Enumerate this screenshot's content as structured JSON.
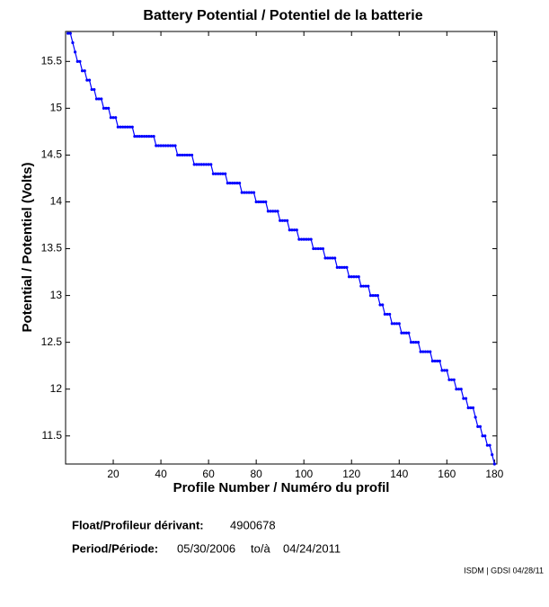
{
  "chart_data": {
    "type": "line",
    "title": "Battery Potential / Potentiel de la batterie",
    "xlabel": "Profile Number / Numéro du profil",
    "ylabel": "Potential / Potentiel (Volts)",
    "xlim": [
      0,
      181
    ],
    "xticks": [
      20,
      40,
      60,
      80,
      100,
      120,
      140,
      160,
      180
    ],
    "ylim": [
      11.2,
      15.82
    ],
    "yticks": [
      11.5,
      12,
      12.5,
      13,
      13.5,
      14,
      14.5,
      15,
      15.5
    ],
    "x": [
      1,
      2,
      3,
      4,
      5,
      6,
      7,
      8,
      9,
      10,
      11,
      12,
      13,
      14,
      15,
      16,
      17,
      18,
      19,
      20,
      21,
      22,
      23,
      24,
      25,
      26,
      27,
      28,
      29,
      30,
      31,
      32,
      33,
      34,
      35,
      36,
      37,
      38,
      39,
      40,
      41,
      42,
      43,
      44,
      45,
      46,
      47,
      48,
      49,
      50,
      51,
      52,
      53,
      54,
      55,
      56,
      57,
      58,
      59,
      60,
      61,
      62,
      63,
      64,
      65,
      66,
      67,
      68,
      69,
      70,
      71,
      72,
      73,
      74,
      75,
      76,
      77,
      78,
      79,
      80,
      81,
      82,
      83,
      84,
      85,
      86,
      87,
      88,
      89,
      90,
      91,
      92,
      93,
      94,
      95,
      96,
      97,
      98,
      99,
      100,
      101,
      102,
      103,
      104,
      105,
      106,
      107,
      108,
      109,
      110,
      111,
      112,
      113,
      114,
      115,
      116,
      117,
      118,
      119,
      120,
      121,
      122,
      123,
      124,
      125,
      126,
      127,
      128,
      129,
      130,
      131,
      132,
      133,
      134,
      135,
      136,
      137,
      138,
      139,
      140,
      141,
      142,
      143,
      144,
      145,
      146,
      147,
      148,
      149,
      150,
      151,
      152,
      153,
      154,
      155,
      156,
      157,
      158,
      159,
      160,
      161,
      162,
      163,
      164,
      165,
      166,
      167,
      168,
      169,
      170,
      171,
      172,
      173,
      174,
      175,
      176,
      177,
      178,
      179,
      180
    ],
    "series": [
      {
        "color": "#0000ff",
        "values": [
          15.8,
          15.8,
          15.7,
          15.6,
          15.5,
          15.5,
          15.4,
          15.4,
          15.3,
          15.3,
          15.2,
          15.2,
          15.1,
          15.1,
          15.1,
          15.0,
          15.0,
          15.0,
          14.9,
          14.9,
          14.9,
          14.8,
          14.8,
          14.8,
          14.8,
          14.8,
          14.8,
          14.8,
          14.7,
          14.7,
          14.7,
          14.7,
          14.7,
          14.7,
          14.7,
          14.7,
          14.7,
          14.6,
          14.6,
          14.6,
          14.6,
          14.6,
          14.6,
          14.6,
          14.6,
          14.6,
          14.5,
          14.5,
          14.5,
          14.5,
          14.5,
          14.5,
          14.5,
          14.4,
          14.4,
          14.4,
          14.4,
          14.4,
          14.4,
          14.4,
          14.4,
          14.3,
          14.3,
          14.3,
          14.3,
          14.3,
          14.3,
          14.2,
          14.2,
          14.2,
          14.2,
          14.2,
          14.2,
          14.1,
          14.1,
          14.1,
          14.1,
          14.1,
          14.1,
          14.0,
          14.0,
          14.0,
          14.0,
          14.0,
          13.9,
          13.9,
          13.9,
          13.9,
          13.9,
          13.8,
          13.8,
          13.8,
          13.8,
          13.7,
          13.7,
          13.7,
          13.7,
          13.6,
          13.6,
          13.6,
          13.6,
          13.6,
          13.6,
          13.5,
          13.5,
          13.5,
          13.5,
          13.5,
          13.4,
          13.4,
          13.4,
          13.4,
          13.4,
          13.3,
          13.3,
          13.3,
          13.3,
          13.3,
          13.2,
          13.2,
          13.2,
          13.2,
          13.2,
          13.1,
          13.1,
          13.1,
          13.1,
          13.0,
          13.0,
          13.0,
          13.0,
          12.9,
          12.9,
          12.8,
          12.8,
          12.8,
          12.7,
          12.7,
          12.7,
          12.7,
          12.6,
          12.6,
          12.6,
          12.6,
          12.5,
          12.5,
          12.5,
          12.5,
          12.4,
          12.4,
          12.4,
          12.4,
          12.4,
          12.3,
          12.3,
          12.3,
          12.3,
          12.2,
          12.2,
          12.2,
          12.1,
          12.1,
          12.1,
          12.0,
          12.0,
          12.0,
          11.9,
          11.9,
          11.8,
          11.8,
          11.8,
          11.7,
          11.6,
          11.6,
          11.5,
          11.5,
          11.4,
          11.4,
          11.3,
          11.2
        ]
      }
    ],
    "info": {
      "float_label": "Float/Profileur dérivant:",
      "float_id": "4900678",
      "period_label": "Period/Période:",
      "start": "05/30/2006",
      "to": "to/à",
      "end": "04/24/2011",
      "credit": "ISDM | GDSI 04/28/11"
    }
  }
}
